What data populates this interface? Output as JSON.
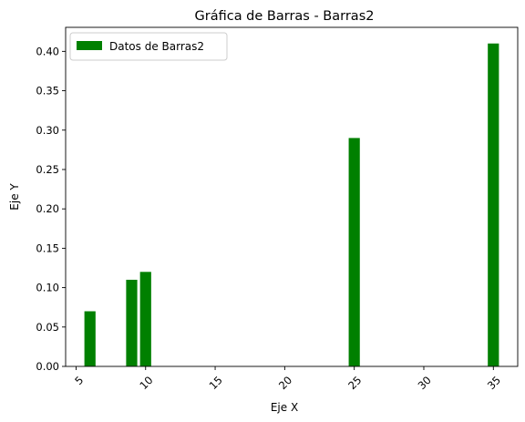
{
  "chart_data": {
    "type": "bar",
    "title": "Gráfica de Barras - Barras2",
    "xlabel": "Eje X",
    "ylabel": "Eje Y",
    "x": [
      6,
      9,
      10,
      25,
      35
    ],
    "values": [
      0.07,
      0.11,
      0.12,
      0.29,
      0.41
    ],
    "series": [
      {
        "name": "Datos de Barras2",
        "values": [
          0.07,
          0.11,
          0.12,
          0.29,
          0.41
        ]
      }
    ],
    "color": "#008000",
    "xlim": [
      4.25,
      36.75
    ],
    "ylim": [
      0,
      0.4305
    ],
    "xticks": [
      "5",
      "10",
      "15",
      "20",
      "25",
      "30",
      "35"
    ],
    "xtick_values": [
      5,
      10,
      15,
      20,
      25,
      30,
      35
    ],
    "yticks": [
      "0.00",
      "0.05",
      "0.10",
      "0.15",
      "0.20",
      "0.25",
      "0.30",
      "0.35",
      "0.40"
    ],
    "ytick_values": [
      0,
      0.05,
      0.1,
      0.15,
      0.2,
      0.25,
      0.3,
      0.35,
      0.4
    ],
    "xtick_rotation_deg": 45,
    "grid": false,
    "legend": "top-left"
  }
}
